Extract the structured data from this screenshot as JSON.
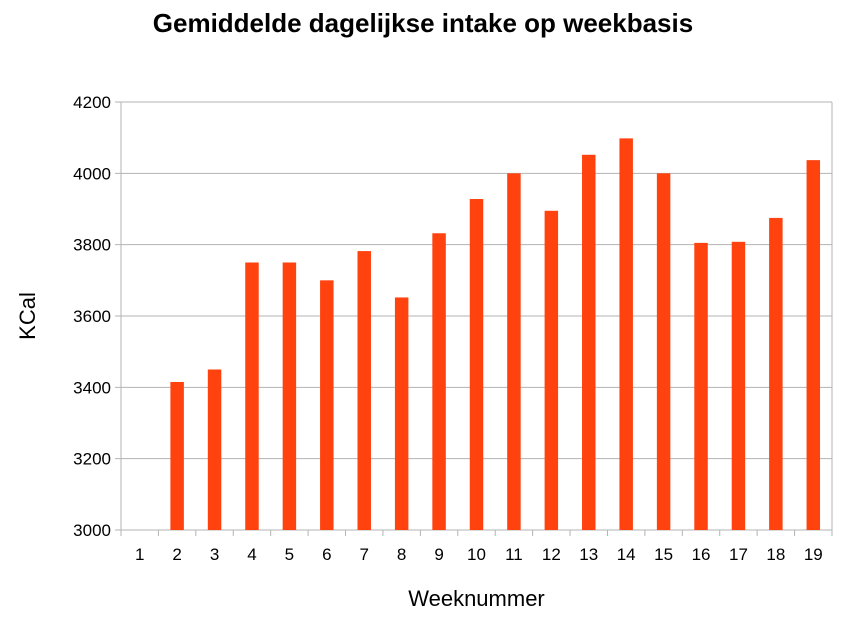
{
  "chart_data": {
    "type": "bar",
    "title": "Gemiddelde dagelijkse intake op weekbasis",
    "xlabel": "Weeknummer",
    "ylabel": "KCal",
    "categories": [
      "1",
      "2",
      "3",
      "4",
      "5",
      "6",
      "7",
      "8",
      "9",
      "10",
      "11",
      "12",
      "13",
      "14",
      "15",
      "16",
      "17",
      "18",
      "19"
    ],
    "values": [
      null,
      3415,
      3450,
      3750,
      3750,
      3700,
      3782,
      3652,
      3832,
      3928,
      4000,
      3895,
      4052,
      4098,
      4000,
      3805,
      3808,
      3875,
      4037
    ],
    "ylim": [
      3000,
      4200
    ],
    "yticks": [
      3000,
      3200,
      3400,
      3600,
      3800,
      4000,
      4200
    ],
    "grid": true,
    "legend": "none",
    "bar_color": "#ff420e"
  }
}
